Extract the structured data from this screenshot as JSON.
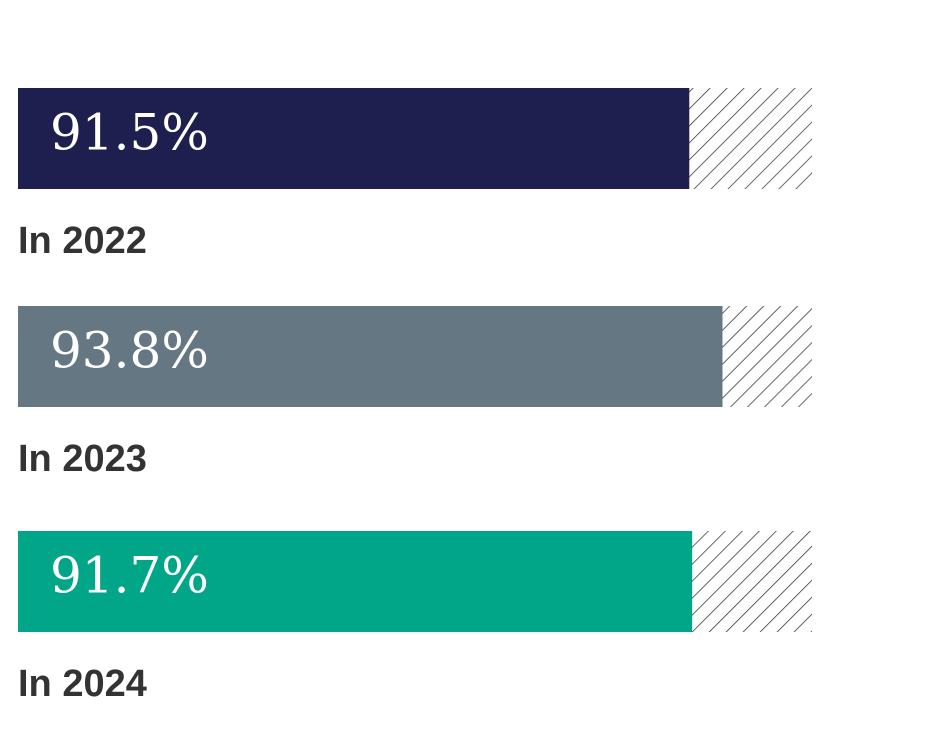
{
  "chart_data": {
    "type": "bar",
    "orientation": "horizontal",
    "categories": [
      "In 2022",
      "In 2023",
      "In 2024"
    ],
    "values": [
      91.5,
      93.8,
      91.7
    ],
    "value_labels": [
      "91.5%",
      "93.8%",
      "91.7%"
    ],
    "colors": [
      "#1f1f4f",
      "#667784",
      "#00a687"
    ],
    "xlim": [
      45,
      100
    ]
  }
}
